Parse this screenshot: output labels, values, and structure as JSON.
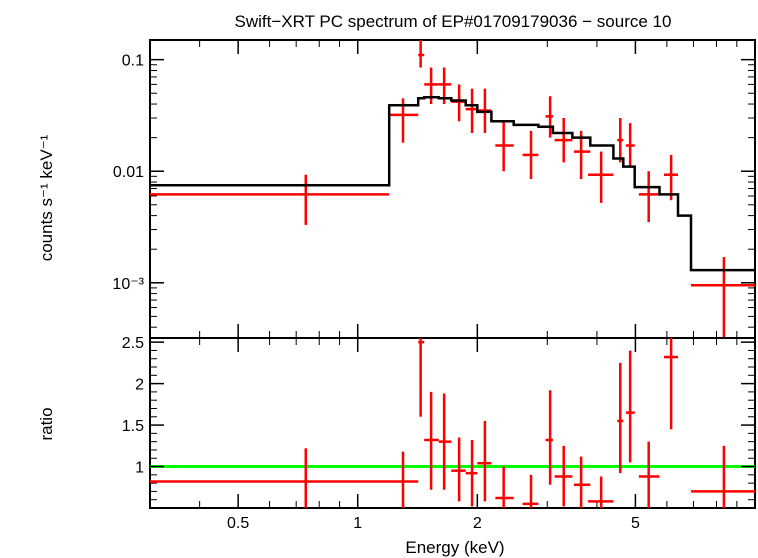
{
  "chart_data": {
    "type": "scatter",
    "title": "Swift−XRT PC spectrum of EP#01709179036 − source 10",
    "xlabel": "Energy (keV)",
    "x_scale": "log",
    "xlim": [
      0.3,
      10
    ],
    "x_ticks": [
      {
        "value": 0.5,
        "label": "0.5"
      },
      {
        "value": 1,
        "label": "1"
      },
      {
        "value": 2,
        "label": "2"
      },
      {
        "value": 5,
        "label": "5"
      }
    ],
    "colors": {
      "data": "#ff0000",
      "model": "#000000",
      "unity": "#00ff00",
      "axes": "#000000"
    },
    "panels": [
      {
        "name": "spectrum",
        "ylabel": "counts s⁻¹ keV⁻¹",
        "y_scale": "log",
        "ylim": [
          0.00032,
          0.15
        ],
        "y_ticks": [
          {
            "value": 0.001,
            "label": "10⁻³"
          },
          {
            "value": 0.01,
            "label": "0.01"
          },
          {
            "value": 0.1,
            "label": "0.1"
          }
        ],
        "series": [
          {
            "name": "data",
            "style": "errorbar",
            "color": "#ff0000",
            "points": [
              {
                "x": 0.74,
                "xlo": 0.3,
                "xhi": 1.2,
                "y": 0.0062,
                "ylo": 0.0033,
                "yhi": 0.0093
              },
              {
                "x": 1.3,
                "xlo": 1.2,
                "xhi": 1.42,
                "y": 0.032,
                "ylo": 0.018,
                "yhi": 0.045
              },
              {
                "x": 1.44,
                "xlo": 1.42,
                "xhi": 1.47,
                "y": 0.11,
                "ylo": 0.085,
                "yhi": 0.15
              },
              {
                "x": 1.53,
                "xlo": 1.47,
                "xhi": 1.6,
                "y": 0.06,
                "ylo": 0.04,
                "yhi": 0.085
              },
              {
                "x": 1.65,
                "xlo": 1.6,
                "xhi": 1.72,
                "y": 0.06,
                "ylo": 0.04,
                "yhi": 0.085
              },
              {
                "x": 1.8,
                "xlo": 1.72,
                "xhi": 1.87,
                "y": 0.042,
                "ylo": 0.028,
                "yhi": 0.06
              },
              {
                "x": 1.94,
                "xlo": 1.87,
                "xhi": 2.0,
                "y": 0.036,
                "ylo": 0.022,
                "yhi": 0.055
              },
              {
                "x": 2.09,
                "xlo": 2.0,
                "xhi": 2.17,
                "y": 0.035,
                "ylo": 0.022,
                "yhi": 0.055
              },
              {
                "x": 2.33,
                "xlo": 2.22,
                "xhi": 2.47,
                "y": 0.017,
                "ylo": 0.01,
                "yhi": 0.028
              },
              {
                "x": 2.73,
                "xlo": 2.6,
                "xhi": 2.85,
                "y": 0.014,
                "ylo": 0.0085,
                "yhi": 0.023
              },
              {
                "x": 3.05,
                "xlo": 2.97,
                "xhi": 3.1,
                "y": 0.031,
                "ylo": 0.02,
                "yhi": 0.047
              },
              {
                "x": 3.3,
                "xlo": 3.13,
                "xhi": 3.47,
                "y": 0.019,
                "ylo": 0.012,
                "yhi": 0.03
              },
              {
                "x": 3.65,
                "xlo": 3.5,
                "xhi": 3.85,
                "y": 0.015,
                "ylo": 0.0085,
                "yhi": 0.023
              },
              {
                "x": 4.1,
                "xlo": 3.8,
                "xhi": 4.4,
                "y": 0.0093,
                "ylo": 0.0052,
                "yhi": 0.015
              },
              {
                "x": 4.58,
                "xlo": 4.5,
                "xhi": 4.66,
                "y": 0.019,
                "ylo": 0.012,
                "yhi": 0.03
              },
              {
                "x": 4.85,
                "xlo": 4.73,
                "xhi": 4.98,
                "y": 0.017,
                "ylo": 0.011,
                "yhi": 0.027
              },
              {
                "x": 5.4,
                "xlo": 5.1,
                "xhi": 5.75,
                "y": 0.0062,
                "ylo": 0.0035,
                "yhi": 0.01
              },
              {
                "x": 6.15,
                "xlo": 5.9,
                "xhi": 6.4,
                "y": 0.0093,
                "ylo": 0.0055,
                "yhi": 0.014
              },
              {
                "x": 8.35,
                "xlo": 6.9,
                "xhi": 10.0,
                "y": 0.00095,
                "ylo": 0.00032,
                "yhi": 0.0017
              }
            ]
          },
          {
            "name": "model",
            "style": "step",
            "color": "#000000",
            "steps": [
              {
                "xlo": 0.3,
                "xhi": 1.2,
                "y": 0.0075
              },
              {
                "xlo": 1.2,
                "xhi": 1.42,
                "y": 0.039
              },
              {
                "xlo": 1.42,
                "xhi": 1.47,
                "y": 0.045
              },
              {
                "xlo": 1.47,
                "xhi": 1.6,
                "y": 0.046
              },
              {
                "xlo": 1.6,
                "xhi": 1.72,
                "y": 0.045
              },
              {
                "xlo": 1.72,
                "xhi": 1.87,
                "y": 0.043
              },
              {
                "xlo": 1.87,
                "xhi": 2.0,
                "y": 0.039
              },
              {
                "xlo": 2.0,
                "xhi": 2.17,
                "y": 0.034
              },
              {
                "xlo": 2.17,
                "xhi": 2.47,
                "y": 0.028
              },
              {
                "xlo": 2.47,
                "xhi": 2.85,
                "y": 0.026
              },
              {
                "xlo": 2.85,
                "xhi": 3.1,
                "y": 0.025
              },
              {
                "xlo": 3.1,
                "xhi": 3.47,
                "y": 0.022
              },
              {
                "xlo": 3.47,
                "xhi": 3.85,
                "y": 0.02
              },
              {
                "xlo": 3.85,
                "xhi": 4.4,
                "y": 0.017
              },
              {
                "xlo": 4.4,
                "xhi": 4.66,
                "y": 0.013
              },
              {
                "xlo": 4.66,
                "xhi": 4.98,
                "y": 0.011
              },
              {
                "xlo": 4.98,
                "xhi": 5.75,
                "y": 0.0072
              },
              {
                "xlo": 5.75,
                "xhi": 6.4,
                "y": 0.0062
              },
              {
                "xlo": 6.4,
                "xhi": 6.9,
                "y": 0.004
              },
              {
                "xlo": 6.9,
                "xhi": 10.0,
                "y": 0.0013
              }
            ]
          }
        ]
      },
      {
        "name": "ratio",
        "ylabel": "ratio",
        "y_scale": "linear",
        "ylim": [
          0.5,
          2.55
        ],
        "y_ticks": [
          {
            "value": 1,
            "label": "1"
          },
          {
            "value": 1.5,
            "label": "1.5"
          },
          {
            "value": 2,
            "label": "2"
          },
          {
            "value": 2.5,
            "label": "2.5"
          }
        ],
        "reference_line": 1.0,
        "series": [
          {
            "name": "ratio",
            "style": "errorbar",
            "color": "#ff0000",
            "points": [
              {
                "x": 0.74,
                "xlo": 0.3,
                "xhi": 1.2,
                "y": 0.82,
                "ylo": 0.5,
                "yhi": 1.22
              },
              {
                "x": 1.3,
                "xlo": 1.2,
                "xhi": 1.42,
                "y": 0.82,
                "ylo": 0.5,
                "yhi": 1.18
              },
              {
                "x": 1.44,
                "xlo": 1.42,
                "xhi": 1.47,
                "y": 2.5,
                "ylo": 1.6,
                "yhi": 2.55
              },
              {
                "x": 1.53,
                "xlo": 1.47,
                "xhi": 1.6,
                "y": 1.32,
                "ylo": 0.72,
                "yhi": 1.9
              },
              {
                "x": 1.65,
                "xlo": 1.6,
                "xhi": 1.72,
                "y": 1.3,
                "ylo": 0.72,
                "yhi": 1.88
              },
              {
                "x": 1.8,
                "xlo": 1.72,
                "xhi": 1.87,
                "y": 0.95,
                "ylo": 0.58,
                "yhi": 1.35
              },
              {
                "x": 1.94,
                "xlo": 1.87,
                "xhi": 2.0,
                "y": 0.92,
                "ylo": 0.52,
                "yhi": 1.32
              },
              {
                "x": 2.09,
                "xlo": 2.0,
                "xhi": 2.17,
                "y": 1.04,
                "ylo": 0.58,
                "yhi": 1.55
              },
              {
                "x": 2.33,
                "xlo": 2.22,
                "xhi": 2.47,
                "y": 0.62,
                "ylo": 0.5,
                "yhi": 1.0
              },
              {
                "x": 2.73,
                "xlo": 2.6,
                "xhi": 2.85,
                "y": 0.55,
                "ylo": 0.5,
                "yhi": 0.9
              },
              {
                "x": 3.05,
                "xlo": 2.97,
                "xhi": 3.1,
                "y": 1.32,
                "ylo": 0.78,
                "yhi": 1.92
              },
              {
                "x": 3.3,
                "xlo": 3.13,
                "xhi": 3.47,
                "y": 0.88,
                "ylo": 0.52,
                "yhi": 1.25
              },
              {
                "x": 3.65,
                "xlo": 3.5,
                "xhi": 3.85,
                "y": 0.78,
                "ylo": 0.5,
                "yhi": 1.12
              },
              {
                "x": 4.1,
                "xlo": 3.8,
                "xhi": 4.4,
                "y": 0.58,
                "ylo": 0.5,
                "yhi": 0.88
              },
              {
                "x": 4.58,
                "xlo": 4.5,
                "xhi": 4.66,
                "y": 1.55,
                "ylo": 0.92,
                "yhi": 2.25
              },
              {
                "x": 4.85,
                "xlo": 4.73,
                "xhi": 4.98,
                "y": 1.65,
                "ylo": 1.05,
                "yhi": 2.4
              },
              {
                "x": 5.4,
                "xlo": 5.1,
                "xhi": 5.75,
                "y": 0.88,
                "ylo": 0.5,
                "yhi": 1.3
              },
              {
                "x": 6.15,
                "xlo": 5.9,
                "xhi": 6.4,
                "y": 2.32,
                "ylo": 1.45,
                "yhi": 2.55
              },
              {
                "x": 8.35,
                "xlo": 6.9,
                "xhi": 10.0,
                "y": 0.7,
                "ylo": 0.5,
                "yhi": 1.25
              }
            ]
          }
        ]
      }
    ]
  }
}
